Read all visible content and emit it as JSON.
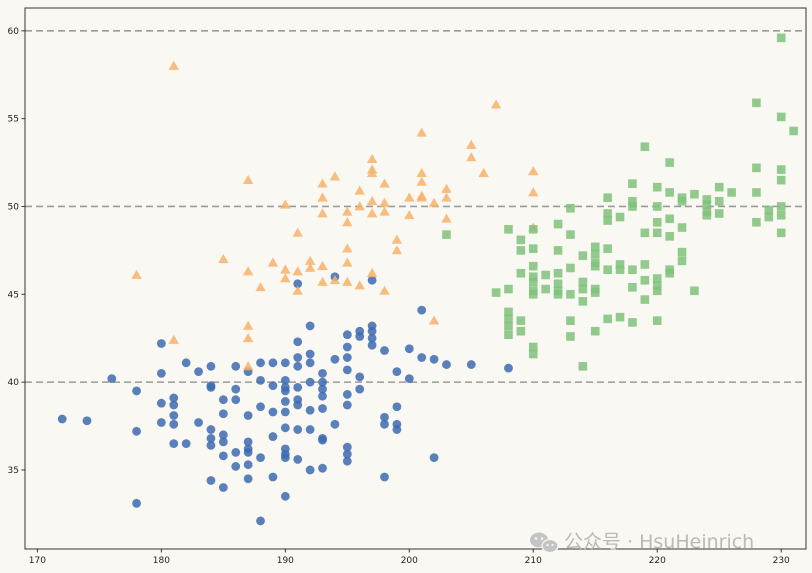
{
  "chart_data": {
    "type": "scatter",
    "xlim": [
      169,
      232
    ],
    "ylim": [
      30.5,
      61.3
    ],
    "xticks": [
      170,
      180,
      190,
      200,
      210,
      220,
      230
    ],
    "yticks": [
      35,
      40,
      45,
      50,
      55,
      60
    ],
    "reference_lines": [
      40,
      50,
      60
    ],
    "grid": false,
    "series": [
      {
        "marker": "circle",
        "color": "#3c6bb0",
        "points": [
          [
            172,
            37.9
          ],
          [
            174,
            37.8
          ],
          [
            176,
            40.2
          ],
          [
            178,
            39.5
          ],
          [
            178,
            37.2
          ],
          [
            178,
            33.1
          ],
          [
            180,
            42.2
          ],
          [
            180,
            40.5
          ],
          [
            180,
            38.8
          ],
          [
            180,
            37.7
          ],
          [
            181,
            39.1
          ],
          [
            181,
            38.7
          ],
          [
            181,
            38.1
          ],
          [
            181,
            37.6
          ],
          [
            181,
            36.5
          ],
          [
            182,
            41.1
          ],
          [
            182,
            36.5
          ],
          [
            183,
            40.6
          ],
          [
            183,
            37.7
          ],
          [
            184,
            40.9
          ],
          [
            184,
            39.8
          ],
          [
            184,
            39.7
          ],
          [
            184,
            37.3
          ],
          [
            184,
            36.8
          ],
          [
            184,
            36.4
          ],
          [
            184,
            34.4
          ],
          [
            185,
            39.0
          ],
          [
            185,
            38.2
          ],
          [
            185,
            37.0
          ],
          [
            185,
            36.6
          ],
          [
            185,
            35.8
          ],
          [
            185,
            34.0
          ],
          [
            186,
            40.9
          ],
          [
            186,
            39.6
          ],
          [
            186,
            39.0
          ],
          [
            186,
            36.0
          ],
          [
            186,
            35.2
          ],
          [
            187,
            40.6
          ],
          [
            187,
            38.1
          ],
          [
            187,
            36.6
          ],
          [
            187,
            36.2
          ],
          [
            187,
            36.0
          ],
          [
            187,
            35.3
          ],
          [
            187,
            34.5
          ],
          [
            188,
            41.1
          ],
          [
            188,
            40.1
          ],
          [
            188,
            38.6
          ],
          [
            188,
            35.7
          ],
          [
            188,
            32.1
          ],
          [
            189,
            41.1
          ],
          [
            189,
            39.8
          ],
          [
            189,
            38.3
          ],
          [
            189,
            36.9
          ],
          [
            189,
            34.6
          ],
          [
            190,
            41.1
          ],
          [
            190,
            40.1
          ],
          [
            190,
            39.7
          ],
          [
            190,
            39.5
          ],
          [
            190,
            38.9
          ],
          [
            190,
            38.3
          ],
          [
            190,
            37.4
          ],
          [
            190,
            36.2
          ],
          [
            190,
            35.9
          ],
          [
            190,
            35.7
          ],
          [
            190,
            33.5
          ],
          [
            191,
            45.6
          ],
          [
            191,
            42.3
          ],
          [
            191,
            41.4
          ],
          [
            191,
            40.9
          ],
          [
            191,
            39.7
          ],
          [
            191,
            39.0
          ],
          [
            191,
            38.7
          ],
          [
            191,
            37.3
          ],
          [
            191,
            35.6
          ],
          [
            192,
            43.2
          ],
          [
            192,
            41.6
          ],
          [
            192,
            41.1
          ],
          [
            192,
            40.0
          ],
          [
            192,
            38.4
          ],
          [
            192,
            37.3
          ],
          [
            192,
            35.0
          ],
          [
            193,
            40.5
          ],
          [
            193,
            40.0
          ],
          [
            193,
            39.6
          ],
          [
            193,
            39.2
          ],
          [
            193,
            38.5
          ],
          [
            193,
            36.8
          ],
          [
            193,
            36.7
          ],
          [
            193,
            35.1
          ],
          [
            194,
            46.0
          ],
          [
            194,
            41.3
          ],
          [
            194,
            37.6
          ],
          [
            195,
            42.7
          ],
          [
            195,
            42.0
          ],
          [
            195,
            41.4
          ],
          [
            195,
            40.7
          ],
          [
            195,
            39.3
          ],
          [
            195,
            38.7
          ],
          [
            195,
            36.3
          ],
          [
            195,
            35.9
          ],
          [
            195,
            35.5
          ],
          [
            196,
            42.9
          ],
          [
            196,
            42.6
          ],
          [
            196,
            40.3
          ],
          [
            196,
            39.6
          ],
          [
            197,
            45.8
          ],
          [
            197,
            43.2
          ],
          [
            197,
            42.9
          ],
          [
            197,
            42.5
          ],
          [
            197,
            42.1
          ],
          [
            198,
            41.8
          ],
          [
            198,
            38.0
          ],
          [
            198,
            37.6
          ],
          [
            198,
            34.6
          ],
          [
            199,
            40.6
          ],
          [
            199,
            38.6
          ],
          [
            199,
            37.6
          ],
          [
            199,
            37.3
          ],
          [
            200,
            41.9
          ],
          [
            200,
            40.2
          ],
          [
            201,
            44.1
          ],
          [
            201,
            41.4
          ],
          [
            202,
            41.3
          ],
          [
            202,
            35.7
          ],
          [
            203,
            41.0
          ],
          [
            205,
            41.0
          ],
          [
            208,
            40.8
          ]
        ]
      },
      {
        "marker": "triangle",
        "color": "#f7b168",
        "points": [
          [
            178,
            46.1
          ],
          [
            181,
            58.0
          ],
          [
            181,
            42.4
          ],
          [
            185,
            47.0
          ],
          [
            187,
            51.5
          ],
          [
            187,
            46.3
          ],
          [
            187,
            43.2
          ],
          [
            187,
            42.5
          ],
          [
            187,
            40.9
          ],
          [
            188,
            45.4
          ],
          [
            189,
            46.8
          ],
          [
            190,
            50.1
          ],
          [
            190,
            46.4
          ],
          [
            190,
            45.9
          ],
          [
            191,
            48.5
          ],
          [
            191,
            46.3
          ],
          [
            191,
            45.2
          ],
          [
            192,
            46.9
          ],
          [
            192,
            46.5
          ],
          [
            193,
            51.3
          ],
          [
            193,
            50.5
          ],
          [
            193,
            49.6
          ],
          [
            193,
            46.6
          ],
          [
            193,
            45.7
          ],
          [
            194,
            51.7
          ],
          [
            194,
            45.8
          ],
          [
            195,
            49.7
          ],
          [
            195,
            49.1
          ],
          [
            195,
            47.6
          ],
          [
            195,
            46.8
          ],
          [
            195,
            45.7
          ],
          [
            196,
            50.9
          ],
          [
            196,
            50.0
          ],
          [
            196,
            45.5
          ],
          [
            197,
            52.7
          ],
          [
            197,
            52.1
          ],
          [
            197,
            51.9
          ],
          [
            197,
            50.3
          ],
          [
            197,
            49.6
          ],
          [
            197,
            46.2
          ],
          [
            198,
            51.3
          ],
          [
            198,
            50.2
          ],
          [
            198,
            49.7
          ],
          [
            198,
            45.2
          ],
          [
            199,
            48.1
          ],
          [
            199,
            47.5
          ],
          [
            200,
            50.5
          ],
          [
            200,
            49.5
          ],
          [
            201,
            54.2
          ],
          [
            201,
            51.9
          ],
          [
            201,
            51.4
          ],
          [
            201,
            50.6
          ],
          [
            201,
            50.5
          ],
          [
            202,
            50.2
          ],
          [
            202,
            43.5
          ],
          [
            203,
            51.0
          ],
          [
            203,
            50.5
          ],
          [
            203,
            49.3
          ],
          [
            205,
            53.5
          ],
          [
            205,
            52.8
          ],
          [
            206,
            51.9
          ],
          [
            207,
            55.8
          ],
          [
            210,
            52.0
          ],
          [
            210,
            50.8
          ],
          [
            210,
            48.8
          ]
        ]
      },
      {
        "marker": "square",
        "color": "#7fc27b",
        "points": [
          [
            203,
            48.4
          ],
          [
            207,
            45.1
          ],
          [
            208,
            48.7
          ],
          [
            208,
            45.3
          ],
          [
            208,
            44.0
          ],
          [
            208,
            43.6
          ],
          [
            208,
            43.2
          ],
          [
            208,
            42.7
          ],
          [
            209,
            48.1
          ],
          [
            209,
            47.5
          ],
          [
            209,
            46.2
          ],
          [
            209,
            43.5
          ],
          [
            209,
            42.9
          ],
          [
            210,
            48.7
          ],
          [
            210,
            47.6
          ],
          [
            210,
            46.6
          ],
          [
            210,
            46.0
          ],
          [
            210,
            45.7
          ],
          [
            210,
            45.2
          ],
          [
            210,
            45.0
          ],
          [
            210,
            42.0
          ],
          [
            210,
            41.6
          ],
          [
            211,
            46.1
          ],
          [
            211,
            45.3
          ],
          [
            212,
            49.0
          ],
          [
            212,
            47.5
          ],
          [
            212,
            46.2
          ],
          [
            212,
            45.6
          ],
          [
            212,
            45.2
          ],
          [
            212,
            45.0
          ],
          [
            213,
            49.9
          ],
          [
            213,
            48.4
          ],
          [
            213,
            46.5
          ],
          [
            213,
            45.0
          ],
          [
            213,
            43.5
          ],
          [
            213,
            42.6
          ],
          [
            214,
            47.2
          ],
          [
            214,
            45.7
          ],
          [
            214,
            45.3
          ],
          [
            214,
            44.6
          ],
          [
            214,
            40.9
          ],
          [
            215,
            47.7
          ],
          [
            215,
            47.3
          ],
          [
            215,
            46.8
          ],
          [
            215,
            46.6
          ],
          [
            215,
            45.3
          ],
          [
            215,
            45.1
          ],
          [
            215,
            42.9
          ],
          [
            216,
            50.5
          ],
          [
            216,
            49.6
          ],
          [
            216,
            49.2
          ],
          [
            216,
            47.6
          ],
          [
            216,
            46.4
          ],
          [
            216,
            43.6
          ],
          [
            217,
            49.4
          ],
          [
            217,
            46.7
          ],
          [
            217,
            46.4
          ],
          [
            217,
            43.7
          ],
          [
            218,
            51.3
          ],
          [
            218,
            50.3
          ],
          [
            218,
            50.0
          ],
          [
            218,
            46.4
          ],
          [
            218,
            45.4
          ],
          [
            218,
            43.4
          ],
          [
            219,
            53.4
          ],
          [
            219,
            48.5
          ],
          [
            219,
            46.7
          ],
          [
            219,
            45.8
          ],
          [
            219,
            44.7
          ],
          [
            220,
            51.1
          ],
          [
            220,
            50.0
          ],
          [
            220,
            49.1
          ],
          [
            220,
            48.5
          ],
          [
            220,
            45.9
          ],
          [
            220,
            45.5
          ],
          [
            220,
            45.2
          ],
          [
            220,
            43.5
          ],
          [
            221,
            52.5
          ],
          [
            221,
            50.8
          ],
          [
            221,
            49.3
          ],
          [
            221,
            48.3
          ],
          [
            221,
            46.4
          ],
          [
            221,
            46.2
          ],
          [
            222,
            50.5
          ],
          [
            222,
            50.3
          ],
          [
            222,
            48.8
          ],
          [
            222,
            47.4
          ],
          [
            222,
            46.9
          ],
          [
            223,
            50.7
          ],
          [
            223,
            45.2
          ],
          [
            224,
            50.4
          ],
          [
            224,
            50.1
          ],
          [
            224,
            49.7
          ],
          [
            224,
            49.5
          ],
          [
            225,
            51.1
          ],
          [
            225,
            50.3
          ],
          [
            225,
            49.6
          ],
          [
            226,
            50.8
          ],
          [
            228,
            55.9
          ],
          [
            228,
            52.2
          ],
          [
            228,
            50.8
          ],
          [
            228,
            49.1
          ],
          [
            229,
            49.8
          ],
          [
            229,
            49.4
          ],
          [
            230,
            59.6
          ],
          [
            230,
            55.1
          ],
          [
            230,
            52.1
          ],
          [
            230,
            51.5
          ],
          [
            230,
            50.0
          ],
          [
            230,
            49.5
          ],
          [
            230,
            48.5
          ],
          [
            231,
            54.3
          ]
        ]
      }
    ]
  },
  "watermark": {
    "icon": "wechat-icon",
    "text": "公众号 · HsuHeinrich"
  },
  "colors": {
    "background": "#faf8f3",
    "axis": "#333333",
    "reference_line": "#9b9b9b"
  }
}
